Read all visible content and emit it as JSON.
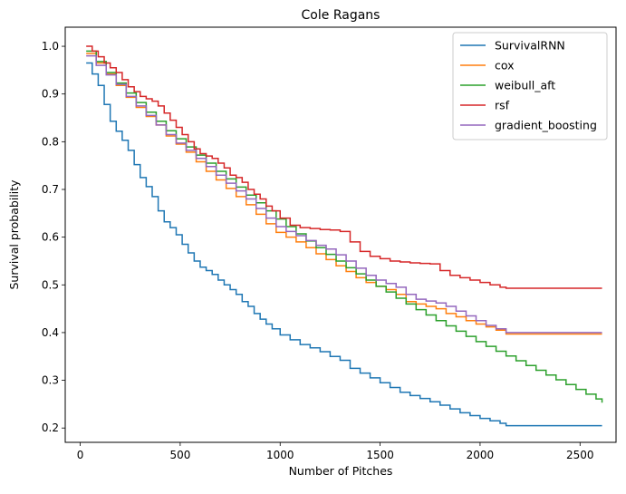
{
  "chart_data": {
    "type": "line",
    "step": true,
    "title": "Cole Ragans",
    "xlabel": "Number of Pitches",
    "ylabel": "Survival probability",
    "xlim": [
      -75,
      2680
    ],
    "ylim": [
      0.17,
      1.04
    ],
    "xticks": [
      0,
      500,
      1000,
      1500,
      2000,
      2500
    ],
    "yticks": [
      0.2,
      0.3,
      0.4,
      0.5,
      0.6,
      0.7,
      0.8,
      0.9,
      1.0
    ],
    "grid": false,
    "legend_position": "top-right",
    "series": [
      {
        "name": "SurvivalRNN",
        "color": "#1f77b4",
        "x": [
          30,
          60,
          90,
          120,
          150,
          180,
          210,
          240,
          270,
          300,
          330,
          360,
          390,
          420,
          450,
          480,
          510,
          540,
          570,
          600,
          630,
          660,
          690,
          720,
          750,
          780,
          810,
          840,
          870,
          900,
          930,
          960,
          1000,
          1050,
          1100,
          1150,
          1200,
          1250,
          1300,
          1350,
          1400,
          1450,
          1500,
          1550,
          1600,
          1650,
          1700,
          1750,
          1800,
          1850,
          1900,
          1950,
          2000,
          2050,
          2100,
          2130,
          2610
        ],
        "y": [
          0.965,
          0.942,
          0.918,
          0.878,
          0.843,
          0.822,
          0.803,
          0.782,
          0.752,
          0.725,
          0.706,
          0.685,
          0.655,
          0.632,
          0.62,
          0.605,
          0.585,
          0.567,
          0.55,
          0.537,
          0.53,
          0.522,
          0.51,
          0.5,
          0.49,
          0.48,
          0.465,
          0.455,
          0.44,
          0.428,
          0.418,
          0.408,
          0.395,
          0.385,
          0.375,
          0.368,
          0.36,
          0.35,
          0.342,
          0.325,
          0.315,
          0.305,
          0.295,
          0.285,
          0.275,
          0.268,
          0.262,
          0.255,
          0.248,
          0.24,
          0.232,
          0.226,
          0.22,
          0.215,
          0.21,
          0.205,
          0.205
        ]
      },
      {
        "name": "cox",
        "color": "#ff7f0e",
        "x": [
          30,
          80,
          130,
          180,
          230,
          280,
          330,
          380,
          430,
          480,
          530,
          580,
          630,
          680,
          730,
          780,
          830,
          880,
          930,
          980,
          1030,
          1080,
          1130,
          1180,
          1230,
          1280,
          1330,
          1380,
          1430,
          1480,
          1530,
          1580,
          1630,
          1680,
          1730,
          1780,
          1830,
          1880,
          1930,
          1980,
          2030,
          2080,
          2130,
          2610
        ],
        "y": [
          0.985,
          0.965,
          0.942,
          0.918,
          0.893,
          0.872,
          0.853,
          0.835,
          0.812,
          0.795,
          0.778,
          0.758,
          0.738,
          0.72,
          0.702,
          0.685,
          0.668,
          0.648,
          0.628,
          0.61,
          0.6,
          0.59,
          0.578,
          0.565,
          0.553,
          0.54,
          0.528,
          0.515,
          0.505,
          0.497,
          0.49,
          0.48,
          0.465,
          0.46,
          0.455,
          0.45,
          0.44,
          0.433,
          0.425,
          0.418,
          0.412,
          0.405,
          0.397,
          0.397
        ]
      },
      {
        "name": "weibull_aft",
        "color": "#2ca02c",
        "x": [
          30,
          80,
          130,
          180,
          230,
          280,
          330,
          380,
          430,
          480,
          530,
          580,
          630,
          680,
          730,
          780,
          830,
          880,
          930,
          980,
          1030,
          1080,
          1130,
          1180,
          1230,
          1280,
          1330,
          1380,
          1430,
          1480,
          1530,
          1580,
          1630,
          1680,
          1730,
          1780,
          1830,
          1880,
          1930,
          1980,
          2030,
          2080,
          2130,
          2180,
          2230,
          2280,
          2330,
          2380,
          2430,
          2480,
          2530,
          2580,
          2610
        ],
        "y": [
          0.99,
          0.968,
          0.945,
          0.923,
          0.902,
          0.882,
          0.862,
          0.843,
          0.823,
          0.806,
          0.789,
          0.772,
          0.755,
          0.738,
          0.722,
          0.705,
          0.688,
          0.672,
          0.655,
          0.638,
          0.622,
          0.607,
          0.592,
          0.578,
          0.564,
          0.55,
          0.536,
          0.523,
          0.51,
          0.497,
          0.485,
          0.472,
          0.46,
          0.448,
          0.437,
          0.425,
          0.414,
          0.403,
          0.392,
          0.381,
          0.371,
          0.361,
          0.351,
          0.341,
          0.331,
          0.321,
          0.311,
          0.301,
          0.291,
          0.281,
          0.271,
          0.261,
          0.253
        ]
      },
      {
        "name": "rsf",
        "color": "#d62728",
        "x": [
          30,
          60,
          90,
          120,
          150,
          180,
          210,
          240,
          270,
          300,
          330,
          360,
          390,
          420,
          450,
          480,
          510,
          540,
          570,
          600,
          630,
          660,
          690,
          720,
          750,
          780,
          810,
          840,
          870,
          900,
          930,
          960,
          1000,
          1050,
          1100,
          1150,
          1200,
          1250,
          1300,
          1350,
          1400,
          1450,
          1500,
          1550,
          1600,
          1650,
          1700,
          1750,
          1800,
          1850,
          1900,
          1950,
          2000,
          2050,
          2100,
          2130,
          2610
        ],
        "y": [
          1.0,
          0.99,
          0.978,
          0.965,
          0.955,
          0.945,
          0.93,
          0.915,
          0.905,
          0.895,
          0.89,
          0.885,
          0.875,
          0.86,
          0.845,
          0.83,
          0.815,
          0.8,
          0.785,
          0.775,
          0.77,
          0.765,
          0.755,
          0.745,
          0.73,
          0.725,
          0.715,
          0.7,
          0.69,
          0.68,
          0.665,
          0.655,
          0.64,
          0.625,
          0.62,
          0.618,
          0.616,
          0.615,
          0.612,
          0.59,
          0.57,
          0.56,
          0.555,
          0.55,
          0.548,
          0.546,
          0.545,
          0.544,
          0.53,
          0.52,
          0.515,
          0.51,
          0.505,
          0.5,
          0.495,
          0.493,
          0.493
        ]
      },
      {
        "name": "gradient_boosting",
        "color": "#9467bd",
        "x": [
          30,
          80,
          130,
          180,
          230,
          280,
          330,
          380,
          430,
          480,
          530,
          580,
          630,
          680,
          730,
          780,
          830,
          880,
          930,
          980,
          1030,
          1080,
          1130,
          1180,
          1230,
          1280,
          1330,
          1380,
          1430,
          1480,
          1530,
          1580,
          1630,
          1680,
          1730,
          1780,
          1830,
          1880,
          1930,
          1980,
          2030,
          2080,
          2130,
          2610
        ],
        "y": [
          0.98,
          0.96,
          0.94,
          0.92,
          0.895,
          0.875,
          0.855,
          0.835,
          0.815,
          0.797,
          0.782,
          0.765,
          0.748,
          0.73,
          0.713,
          0.697,
          0.68,
          0.66,
          0.64,
          0.622,
          0.612,
          0.603,
          0.593,
          0.583,
          0.575,
          0.563,
          0.55,
          0.535,
          0.52,
          0.51,
          0.503,
          0.495,
          0.48,
          0.47,
          0.466,
          0.462,
          0.455,
          0.445,
          0.435,
          0.425,
          0.415,
          0.408,
          0.4,
          0.4
        ]
      }
    ]
  }
}
